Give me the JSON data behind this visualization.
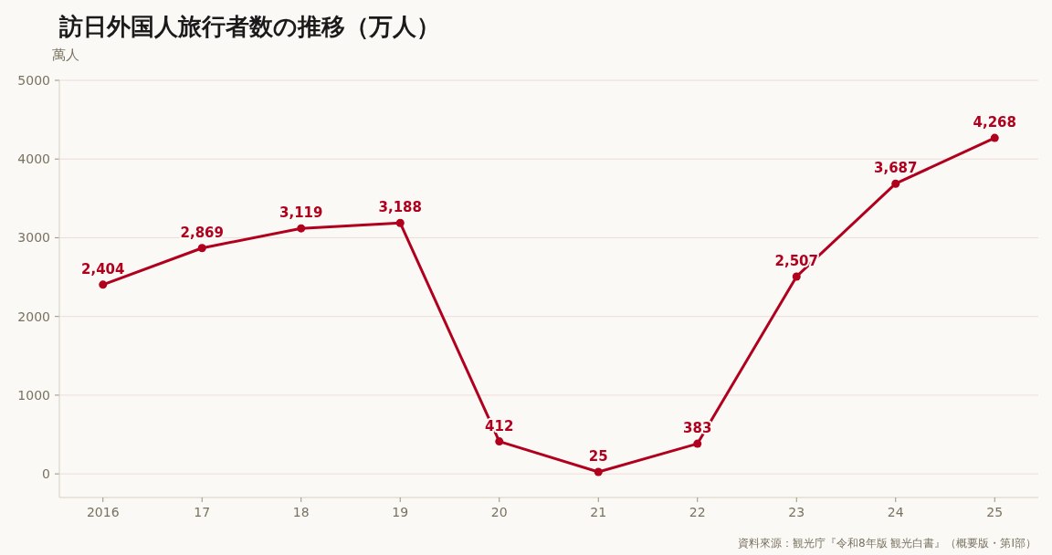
{
  "chart_data": {
    "type": "line",
    "title": "訪日外国人旅行者数の推移（万人）",
    "ylabel": "萬人",
    "categories": [
      "2016",
      "17",
      "18",
      "19",
      "20",
      "21",
      "22",
      "23",
      "24",
      "25"
    ],
    "series": [
      {
        "color": "#b0001e",
        "values": [
          2404,
          2869,
          3119,
          3188,
          412,
          25,
          383,
          2507,
          3687,
          4268
        ],
        "value_labels": [
          "2,404",
          "2,869",
          "3,119",
          "3,188",
          "412",
          "25",
          "383",
          "2,507",
          "3,687",
          "4,268"
        ]
      }
    ],
    "ylim": [
      -300,
      5000
    ],
    "yticks": [
      0,
      1000,
      2000,
      3000,
      4000,
      5000
    ],
    "grid": "y",
    "marker": "circle",
    "annotations": [
      "資料來源：観光庁『令和8年版 観光白書』（概要版・第I部）"
    ]
  }
}
